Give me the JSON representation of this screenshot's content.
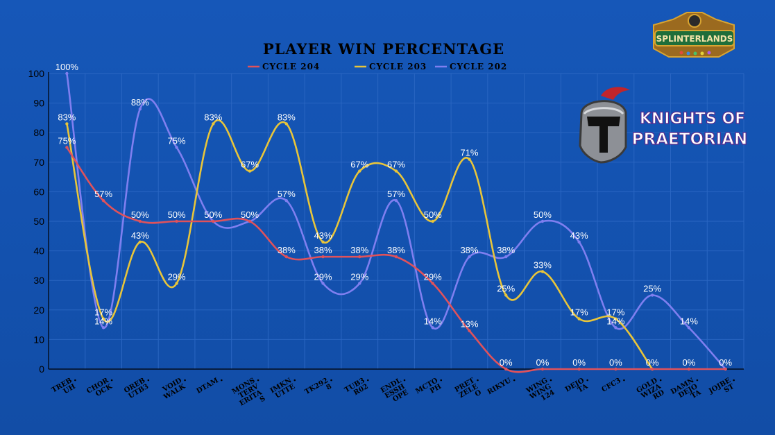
{
  "chart_data": {
    "type": "line",
    "title": "PLAYER WIN PERCENTAGE",
    "ylim": [
      0,
      100
    ],
    "yticks": [
      0,
      10,
      20,
      30,
      40,
      50,
      60,
      70,
      80,
      90,
      100
    ],
    "grid": true,
    "legend_position": "top",
    "categories": [
      [
        "TREB",
        "UH"
      ],
      [
        "CHOR",
        "OCK"
      ],
      [
        "OREB",
        "UTB3"
      ],
      [
        "VOID",
        "WALK"
      ],
      [
        "DTAM"
      ],
      [
        "MONS",
        "TERV",
        "ERITA",
        "S"
      ],
      [
        "IMKN",
        "UTTE"
      ],
      [
        "TK292",
        "8"
      ],
      [
        "TUB3",
        "R02"
      ],
      [
        "ENDL",
        "ESSH",
        "OPE"
      ],
      [
        "MCTO",
        "PH"
      ],
      [
        "PRET",
        "ZELE",
        "O"
      ],
      [
        "RIKYU"
      ],
      [
        "WING",
        "WING",
        "124"
      ],
      [
        "DEJO",
        "TA"
      ],
      [
        "CFC3"
      ],
      [
        "GOLD",
        "WIZA",
        "RD"
      ],
      [
        "DAMN",
        "DEJO",
        "TA"
      ],
      [
        "JOJBE",
        "ST"
      ]
    ],
    "series": [
      {
        "name": "CYCLE 204",
        "color": "#e0525b",
        "values": [
          75,
          57,
          50,
          50,
          50,
          50,
          38,
          38,
          38,
          38,
          29,
          13,
          0,
          0,
          0,
          0,
          0,
          0,
          0
        ],
        "labels": [
          "75%",
          "57%",
          "50%",
          "50%",
          "50%",
          "50%",
          "38%",
          "38%",
          "38%",
          "38%",
          "29%",
          "13%",
          "0%",
          "0%",
          "0%",
          "0%",
          "0%",
          "0%",
          "0%"
        ]
      },
      {
        "name": "CYCLE 203",
        "color": "#e8c53a",
        "values": [
          83,
          17,
          43,
          29,
          83,
          67,
          83,
          43,
          67,
          67,
          50,
          71,
          25,
          33,
          17,
          17,
          0,
          null,
          null
        ],
        "labels": [
          "83%",
          "17%",
          "43%",
          "29%",
          "83%",
          "67%",
          "83%",
          "43%",
          "67%",
          "67%",
          "50%",
          "71%",
          "25%",
          "33%",
          "17%",
          "17%",
          null,
          null,
          null
        ]
      },
      {
        "name": "CYCLE 202",
        "color": "#7f7ff0",
        "values": [
          100,
          14,
          88,
          75,
          50,
          50,
          57,
          29,
          29,
          57,
          14,
          38,
          38,
          50,
          43,
          14,
          25,
          14,
          0
        ],
        "labels": [
          "100%",
          "14%",
          "88%",
          "75%",
          null,
          null,
          "57%",
          "29%",
          "29%",
          "57%",
          "14%",
          "38%",
          "38%",
          "50%",
          "43%",
          "14%",
          "25%",
          "14%",
          null
        ]
      }
    ]
  },
  "logos": {
    "splinterlands": {
      "text": "SPLINTERLANDS",
      "colors": {
        "banner": "#1f6e3a",
        "gold": "#d8a431"
      }
    },
    "knights": {
      "line1": "KNIGHTS OF",
      "line2": "PRAETORIAN",
      "icon": "knight-helmet-icon",
      "colors": {
        "text": "#ffffff",
        "stroke": "#5a2a8c",
        "plume": "#c0252b"
      }
    }
  }
}
